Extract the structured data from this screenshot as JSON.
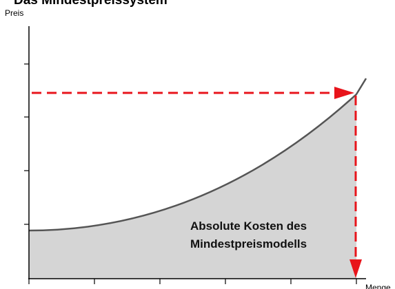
{
  "title": "Das Mindestpreissystem",
  "y_axis_label": "Preis",
  "x_axis_label": "Menge",
  "annotation": [
    "Absolute Kosten des",
    "Mindestpreismodells"
  ]
}
